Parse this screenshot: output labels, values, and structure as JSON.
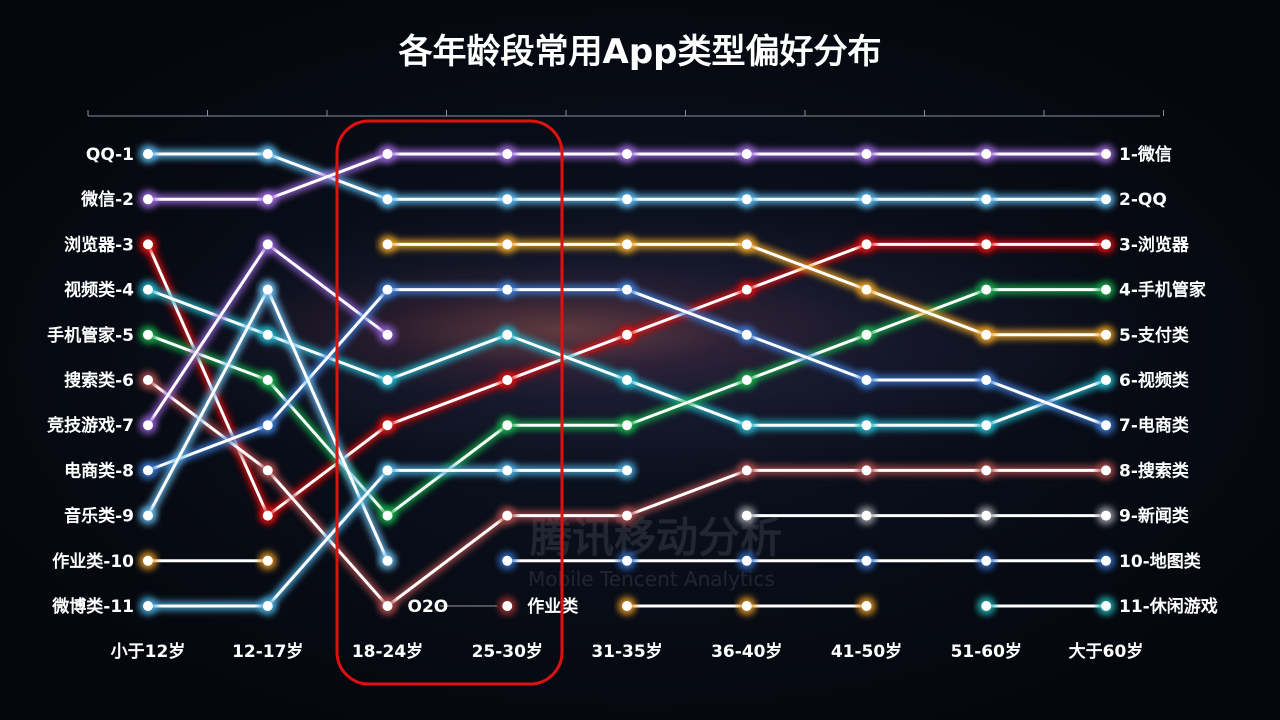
{
  "title": "各年龄段常用App类型偏好分布",
  "watermark": {
    "cn": "腾讯移动分析",
    "en": "Mobile Tencent Analytics"
  },
  "highlight_color": "#e01010",
  "chart_data": {
    "type": "line",
    "subtype": "bump",
    "title": "各年龄段常用App类型偏好分布",
    "categories": [
      "小于12岁",
      "12-17岁",
      "18-24岁",
      "25-30岁",
      "31-35岁",
      "36-40岁",
      "41-50岁",
      "51-60岁",
      "大于60岁"
    ],
    "y_axis": "rank (1 top, 11 bottom)",
    "ylim": [
      1,
      11
    ],
    "left_labels": [
      "QQ-1",
      "微信-2",
      "浏览器-3",
      "视频类-4",
      "手机管家-5",
      "搜索类-6",
      "竞技游戏-7",
      "电商类-8",
      "音乐类-9",
      "作业类-10",
      "微博类-11"
    ],
    "right_labels": [
      "1-微信",
      "2-QQ",
      "3-浏览器",
      "4-手机管家",
      "5-支付类",
      "6-视频类",
      "7-电商类",
      "8-搜索类",
      "9-新闻类",
      "10-地图类",
      "11-休闲游戏"
    ],
    "highlighted_categories": [
      "18-24岁",
      "25-30岁"
    ],
    "annotations": [
      {
        "text": "O2O"
      },
      {
        "text": "作业类"
      }
    ],
    "series": [
      {
        "name": "QQ",
        "color": "#5ab4e8",
        "values": [
          1,
          1,
          2,
          2,
          2,
          2,
          2,
          2,
          2
        ]
      },
      {
        "name": "微信",
        "color": "#9a66d8",
        "values": [
          2,
          2,
          1,
          1,
          1,
          1,
          1,
          1,
          1
        ]
      },
      {
        "name": "浏览器",
        "color": "#d81010",
        "values": [
          3,
          9,
          7,
          6,
          5,
          4,
          3,
          3,
          3
        ]
      },
      {
        "name": "视频类",
        "color": "#22b4c8",
        "values": [
          4,
          5,
          6,
          5,
          6,
          7,
          7,
          7,
          6
        ]
      },
      {
        "name": "手机管家",
        "color": "#12a848",
        "values": [
          5,
          6,
          9,
          7,
          7,
          6,
          5,
          4,
          4
        ]
      },
      {
        "name": "搜索类",
        "color": "#a84848",
        "values": [
          6,
          8,
          11,
          9,
          9,
          8,
          8,
          8,
          8
        ]
      },
      {
        "name": "竞技游戏",
        "color": "#8a5cc8",
        "values": [
          7,
          3,
          5,
          null,
          null,
          null,
          null,
          null,
          null
        ]
      },
      {
        "name": "电商类",
        "color": "#3a78d0",
        "values": [
          8,
          7,
          4,
          4,
          4,
          5,
          6,
          6,
          7
        ]
      },
      {
        "name": "音乐类",
        "color": "#68b8e8",
        "values": [
          9,
          4,
          10,
          null,
          null,
          null,
          null,
          null,
          null
        ]
      },
      {
        "name": "作业类",
        "color": "#e89a20",
        "values": [
          10,
          10,
          null,
          null,
          11,
          11,
          11,
          null,
          null
        ]
      },
      {
        "name": "微博类",
        "color": "#4aa8d8",
        "values": [
          11,
          11,
          8,
          8,
          8,
          null,
          null,
          null,
          null
        ]
      },
      {
        "name": "支付类",
        "color": "#e8a020",
        "values": [
          null,
          null,
          3,
          3,
          3,
          3,
          4,
          5,
          5
        ]
      },
      {
        "name": "新闻类",
        "color": "#a0a0a8",
        "values": [
          null,
          null,
          null,
          null,
          null,
          9,
          9,
          9,
          9
        ]
      },
      {
        "name": "地图类",
        "color": "#3070c8",
        "values": [
          null,
          null,
          null,
          10,
          10,
          10,
          10,
          10,
          10
        ]
      },
      {
        "name": "休闲游戏",
        "color": "#22b8b8",
        "values": [
          null,
          null,
          null,
          null,
          null,
          null,
          null,
          11,
          11
        ]
      },
      {
        "name": "O2O",
        "color": "#a03030",
        "values": [
          null,
          null,
          11,
          11,
          null,
          null,
          null,
          null,
          null
        ]
      }
    ]
  }
}
